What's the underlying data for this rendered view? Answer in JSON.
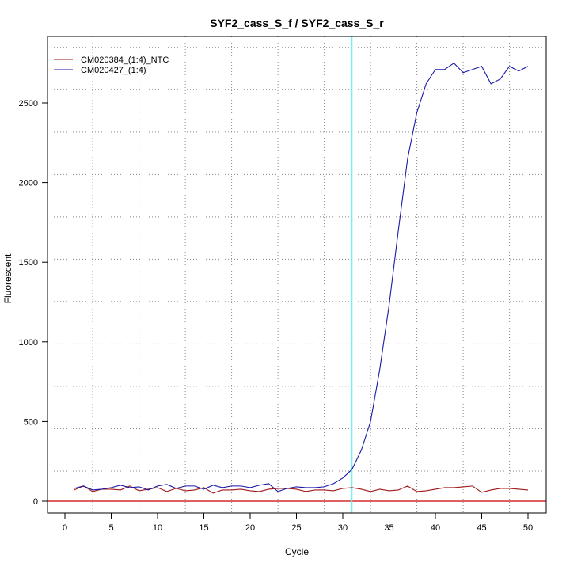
{
  "chart_data": {
    "type": "line",
    "title": "SYF2_cass_S_f / SYF2_cass_S_r",
    "xlabel": "Cycle",
    "ylabel": "Fluorescent",
    "xlim": [
      -2,
      52
    ],
    "ylim": [
      -60,
      2900
    ],
    "xticks": [
      0,
      5,
      10,
      15,
      20,
      25,
      30,
      35,
      40,
      45,
      50
    ],
    "yticks": [
      0,
      500,
      1000,
      1500,
      2000,
      2500
    ],
    "grid": true,
    "legend_position": "top-left",
    "threshold": {
      "value": 0,
      "color": "#cc0000"
    },
    "ct_line": {
      "cycle": 31,
      "color": "#66eeee"
    },
    "x": [
      1,
      2,
      3,
      4,
      5,
      6,
      7,
      8,
      9,
      10,
      11,
      12,
      13,
      14,
      15,
      16,
      17,
      18,
      19,
      20,
      21,
      22,
      23,
      24,
      25,
      26,
      27,
      28,
      29,
      30,
      31,
      32,
      33,
      34,
      35,
      36,
      37,
      38,
      39,
      40,
      41,
      42,
      43,
      44,
      45,
      46,
      47,
      48,
      49,
      50
    ],
    "series": [
      {
        "name": "CM020384_(1:4)_NTC",
        "color": "#a01818",
        "values": [
          70,
          95,
          60,
          75,
          75,
          70,
          95,
          65,
          75,
          85,
          60,
          80,
          65,
          70,
          85,
          50,
          70,
          70,
          75,
          65,
          60,
          75,
          80,
          80,
          75,
          60,
          70,
          70,
          65,
          80,
          85,
          75,
          60,
          75,
          65,
          70,
          95,
          60,
          65,
          75,
          85,
          85,
          90,
          95,
          55,
          70,
          80,
          80,
          75,
          70
        ]
      },
      {
        "name": "CM020427_(1:4)",
        "color": "#1a1aa8",
        "values": [
          80,
          95,
          70,
          75,
          85,
          100,
          85,
          90,
          70,
          95,
          105,
          80,
          95,
          95,
          75,
          100,
          85,
          95,
          95,
          85,
          100,
          110,
          60,
          80,
          90,
          85,
          85,
          90,
          110,
          145,
          200,
          320,
          500,
          830,
          1230,
          1700,
          2150,
          2440,
          2620,
          2710,
          2710,
          2750,
          2690,
          2710,
          2730,
          2620,
          2650,
          2730,
          2700,
          2730
        ]
      }
    ]
  }
}
